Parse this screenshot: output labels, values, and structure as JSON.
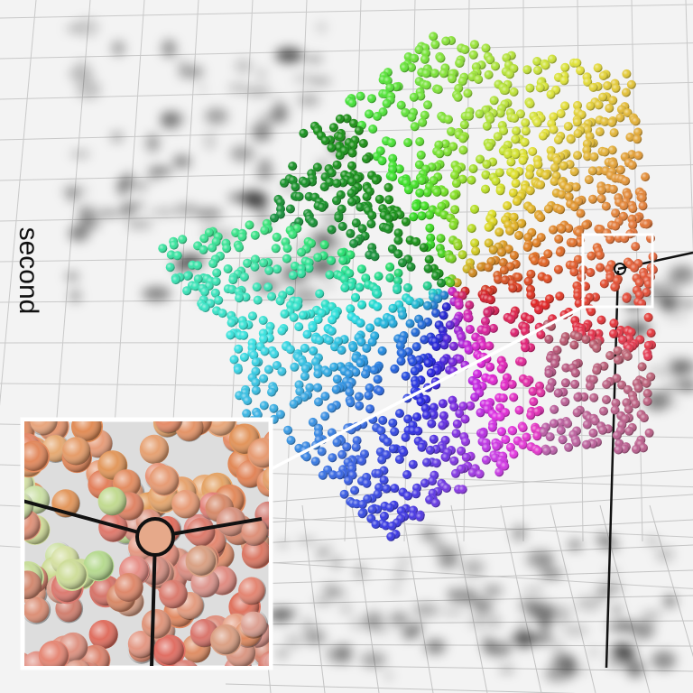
{
  "axis_label": "second"
}
